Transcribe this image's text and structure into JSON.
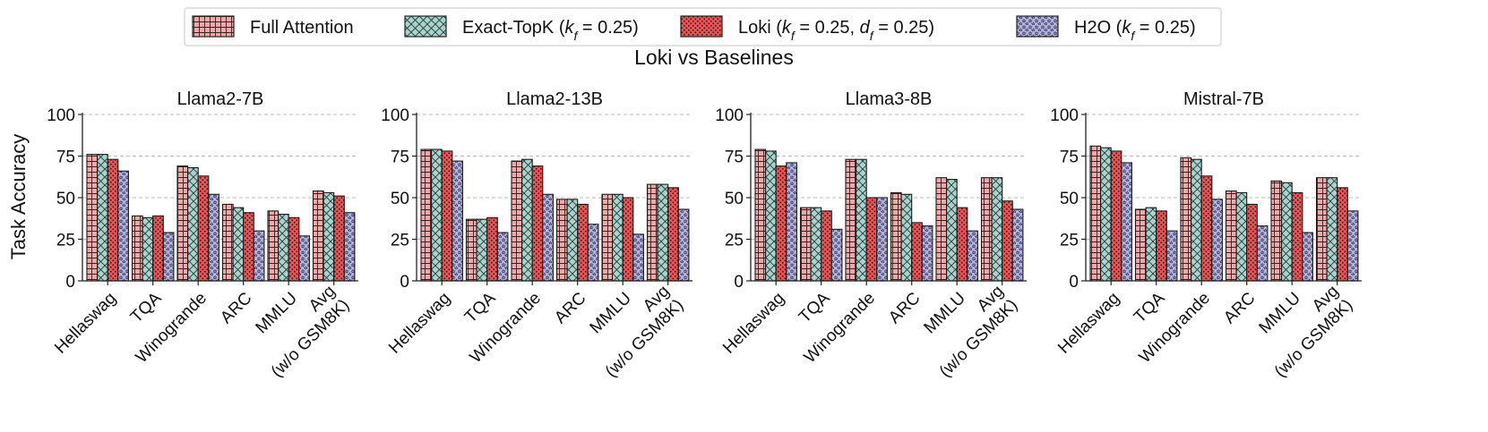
{
  "chart_data": {
    "type": "bar",
    "title": "Loki vs Baselines",
    "ylabel": "Task Accuracy",
    "ylim": [
      0,
      100
    ],
    "yticks": [
      0,
      25,
      50,
      75,
      100
    ],
    "grid": "horizontal dashed",
    "legend_placement": "top-center",
    "categories": [
      "Hellaswag",
      "TQA",
      "Winogrande",
      "ARC",
      "MMLU",
      "Avg (w/o GSM8K)"
    ],
    "category_lines": [
      [
        "Hellaswag"
      ],
      [
        "TQA"
      ],
      [
        "Winogrande"
      ],
      [
        "ARC"
      ],
      [
        "MMLU"
      ],
      [
        "Avg",
        "(w/o GSM8K)"
      ]
    ],
    "legend": [
      {
        "key": "full",
        "parts": [
          {
            "t": "Full Attention"
          }
        ],
        "color": "#f3a6a6",
        "pattern": "grid-icon"
      },
      {
        "key": "topk",
        "parts": [
          {
            "t": "Exact-TopK ("
          },
          {
            "t": "k",
            "i": true
          },
          {
            "t": "f",
            "i": true,
            "sub": true
          },
          {
            "t": " = 0.25)"
          }
        ],
        "color": "#a9d3cc",
        "pattern": "crosshatch-icon"
      },
      {
        "key": "loki",
        "parts": [
          {
            "t": "Loki ("
          },
          {
            "t": "k",
            "i": true
          },
          {
            "t": "f",
            "i": true,
            "sub": true
          },
          {
            "t": " = 0.25, "
          },
          {
            "t": "d",
            "i": true
          },
          {
            "t": "f",
            "i": true,
            "sub": true
          },
          {
            "t": " = 0.25)"
          }
        ],
        "color": "#e45658",
        "pattern": "dots-icon"
      },
      {
        "key": "h2o",
        "parts": [
          {
            "t": "H2O ("
          },
          {
            "t": "k",
            "i": true
          },
          {
            "t": "f",
            "i": true,
            "sub": true
          },
          {
            "t": " = 0.25)"
          }
        ],
        "color": "#b5b5db",
        "pattern": "stars-icon"
      }
    ],
    "panels": [
      {
        "title": "Llama2-7B",
        "series": [
          {
            "key": "full",
            "values": [
              76,
              39,
              69,
              46,
              42,
              54
            ]
          },
          {
            "key": "topk",
            "values": [
              76,
              38,
              68,
              44,
              40,
              53
            ]
          },
          {
            "key": "loki",
            "values": [
              73,
              39,
              63,
              41,
              38,
              51
            ]
          },
          {
            "key": "h2o",
            "values": [
              66,
              29,
              52,
              30,
              27,
              41
            ]
          }
        ]
      },
      {
        "title": "Llama2-13B",
        "series": [
          {
            "key": "full",
            "values": [
              79,
              37,
              72,
              49,
              52,
              58
            ]
          },
          {
            "key": "topk",
            "values": [
              79,
              37,
              73,
              49,
              52,
              58
            ]
          },
          {
            "key": "loki",
            "values": [
              78,
              38,
              69,
              46,
              50,
              56
            ]
          },
          {
            "key": "h2o",
            "values": [
              72,
              29,
              52,
              34,
              28,
              43
            ]
          }
        ]
      },
      {
        "title": "Llama3-8B",
        "series": [
          {
            "key": "full",
            "values": [
              79,
              44,
              73,
              53,
              62,
              62
            ]
          },
          {
            "key": "topk",
            "values": [
              78,
              44,
              73,
              52,
              61,
              62
            ]
          },
          {
            "key": "loki",
            "values": [
              69,
              42,
              50,
              35,
              44,
              48
            ]
          },
          {
            "key": "h2o",
            "values": [
              71,
              31,
              50,
              33,
              30,
              43
            ]
          }
        ]
      },
      {
        "title": "Mistral-7B",
        "series": [
          {
            "key": "full",
            "values": [
              81,
              43,
              74,
              54,
              60,
              62
            ]
          },
          {
            "key": "topk",
            "values": [
              80,
              44,
              73,
              53,
              59,
              62
            ]
          },
          {
            "key": "loki",
            "values": [
              78,
              42,
              63,
              46,
              53,
              56
            ]
          },
          {
            "key": "h2o",
            "values": [
              71,
              30,
              49,
              33,
              29,
              42
            ]
          }
        ]
      }
    ]
  }
}
